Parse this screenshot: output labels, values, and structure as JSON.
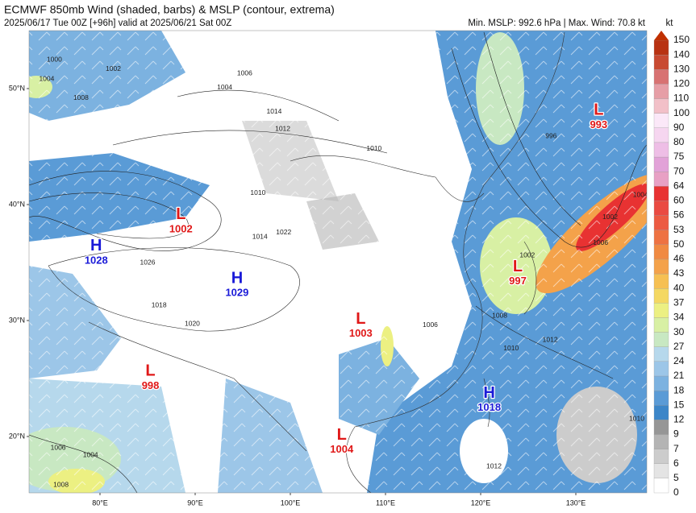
{
  "header": {
    "title": "ECMWF 850mb Wind (shaded, barbs) & MSLP (contour, extrema)",
    "subtitle": "2025/06/17 Tue 00Z [+96h] valid at 2025/06/21 Sat 00Z",
    "summary": "Min. MSLP: 992.6 hPa | Max. Wind: 70.8 kt"
  },
  "map": {
    "lat_ticks": [
      {
        "value": 50,
        "label": "50°N"
      },
      {
        "value": 40,
        "label": "40°N"
      },
      {
        "value": 30,
        "label": "30°N"
      },
      {
        "value": 20,
        "label": "20°N"
      }
    ],
    "lon_ticks": [
      {
        "value": 80,
        "label": "80°E"
      },
      {
        "value": 90,
        "label": "90°E"
      },
      {
        "value": 100,
        "label": "100°E"
      },
      {
        "value": 110,
        "label": "110°E"
      },
      {
        "value": 120,
        "label": "120°E"
      },
      {
        "value": 130,
        "label": "130°E"
      }
    ],
    "high_color": "#1a1ad8",
    "low_color": "#e01818",
    "extrema": [
      {
        "kind": "H",
        "value": 1028,
        "lon": 79.6,
        "lat": 36.4
      },
      {
        "kind": "L",
        "value": 1002,
        "lon": 88.5,
        "lat": 39.1
      },
      {
        "kind": "H",
        "value": 1029,
        "lon": 94.4,
        "lat": 33.6
      },
      {
        "kind": "L",
        "value": 1003,
        "lon": 107.4,
        "lat": 30.1
      },
      {
        "kind": "L",
        "value": 998,
        "lon": 85.3,
        "lat": 25.6
      },
      {
        "kind": "L",
        "value": 1004,
        "lon": 105.4,
        "lat": 20.1
      },
      {
        "kind": "H",
        "value": 1018,
        "lon": 120.9,
        "lat": 23.7
      },
      {
        "kind": "L",
        "value": 997,
        "lon": 123.9,
        "lat": 34.6
      },
      {
        "kind": "L",
        "value": 993,
        "lon": 132.4,
        "lat": 48.1
      }
    ],
    "contour_labels": [
      {
        "value": 1000,
        "lon": 75.2,
        "lat": 52.5
      },
      {
        "value": 1002,
        "lon": 81.4,
        "lat": 51.7
      },
      {
        "value": 1004,
        "lon": 74.4,
        "lat": 50.8
      },
      {
        "value": 1008,
        "lon": 78.0,
        "lat": 49.2
      },
      {
        "value": 1006,
        "lon": 95.2,
        "lat": 51.3
      },
      {
        "value": 1004,
        "lon": 93.1,
        "lat": 50.1
      },
      {
        "value": 1014,
        "lon": 98.3,
        "lat": 48.0
      },
      {
        "value": 1012,
        "lon": 99.2,
        "lat": 46.5
      },
      {
        "value": 1010,
        "lon": 108.8,
        "lat": 44.8
      },
      {
        "value": 1010,
        "lon": 96.6,
        "lat": 41.0
      },
      {
        "value": 1014,
        "lon": 96.8,
        "lat": 37.2
      },
      {
        "value": 1022,
        "lon": 99.3,
        "lat": 37.6
      },
      {
        "value": 1026,
        "lon": 85.0,
        "lat": 35.0
      },
      {
        "value": 1018,
        "lon": 86.2,
        "lat": 31.3
      },
      {
        "value": 1020,
        "lon": 89.7,
        "lat": 29.7
      },
      {
        "value": 1006,
        "lon": 114.7,
        "lat": 29.6
      },
      {
        "value": 1008,
        "lon": 122.0,
        "lat": 30.4
      },
      {
        "value": 1010,
        "lon": 123.2,
        "lat": 27.6
      },
      {
        "value": 1012,
        "lon": 127.3,
        "lat": 28.3
      },
      {
        "value": 1002,
        "lon": 124.9,
        "lat": 35.6
      },
      {
        "value": 1006,
        "lon": 132.6,
        "lat": 36.7
      },
      {
        "value": 1002,
        "lon": 133.6,
        "lat": 38.9
      },
      {
        "value": 1004,
        "lon": 136.8,
        "lat": 40.8
      },
      {
        "value": 996,
        "lon": 127.4,
        "lat": 45.9
      },
      {
        "value": 1006,
        "lon": 75.6,
        "lat": 19.0
      },
      {
        "value": 1004,
        "lon": 79.0,
        "lat": 18.4
      },
      {
        "value": 1008,
        "lon": 75.9,
        "lat": 15.8
      },
      {
        "value": 1010,
        "lon": 136.4,
        "lat": 21.5
      },
      {
        "value": 1012,
        "lon": 121.4,
        "lat": 17.4
      }
    ]
  },
  "colorbar": {
    "unit": "kt",
    "levels": [
      0,
      5,
      6,
      7,
      9,
      12,
      15,
      18,
      21,
      24,
      27,
      30,
      34,
      37,
      40,
      43,
      46,
      50,
      53,
      56,
      60,
      64,
      70,
      75,
      80,
      90,
      100,
      110,
      120,
      130,
      140,
      150
    ],
    "colors": [
      "#ffffff",
      "#e4e4e4",
      "#cccccc",
      "#b4b4b4",
      "#969696",
      "#3c86c8",
      "#5a9bd6",
      "#7cb2e0",
      "#9cc6e8",
      "#b6d8ec",
      "#c8e8c2",
      "#d8f0a4",
      "#ecf082",
      "#f4d862",
      "#f6c052",
      "#f4a24a",
      "#f08a42",
      "#ee7242",
      "#ec5a42",
      "#ea4a42",
      "#e83232",
      "#e8a0c4",
      "#e2a2d8",
      "#eebee6",
      "#f6d6f0",
      "#fbe8f8",
      "#f2c0c8",
      "#e69ea6",
      "#d87272",
      "#c84a32",
      "#b83212"
    ],
    "extend_color": "#c03000"
  }
}
